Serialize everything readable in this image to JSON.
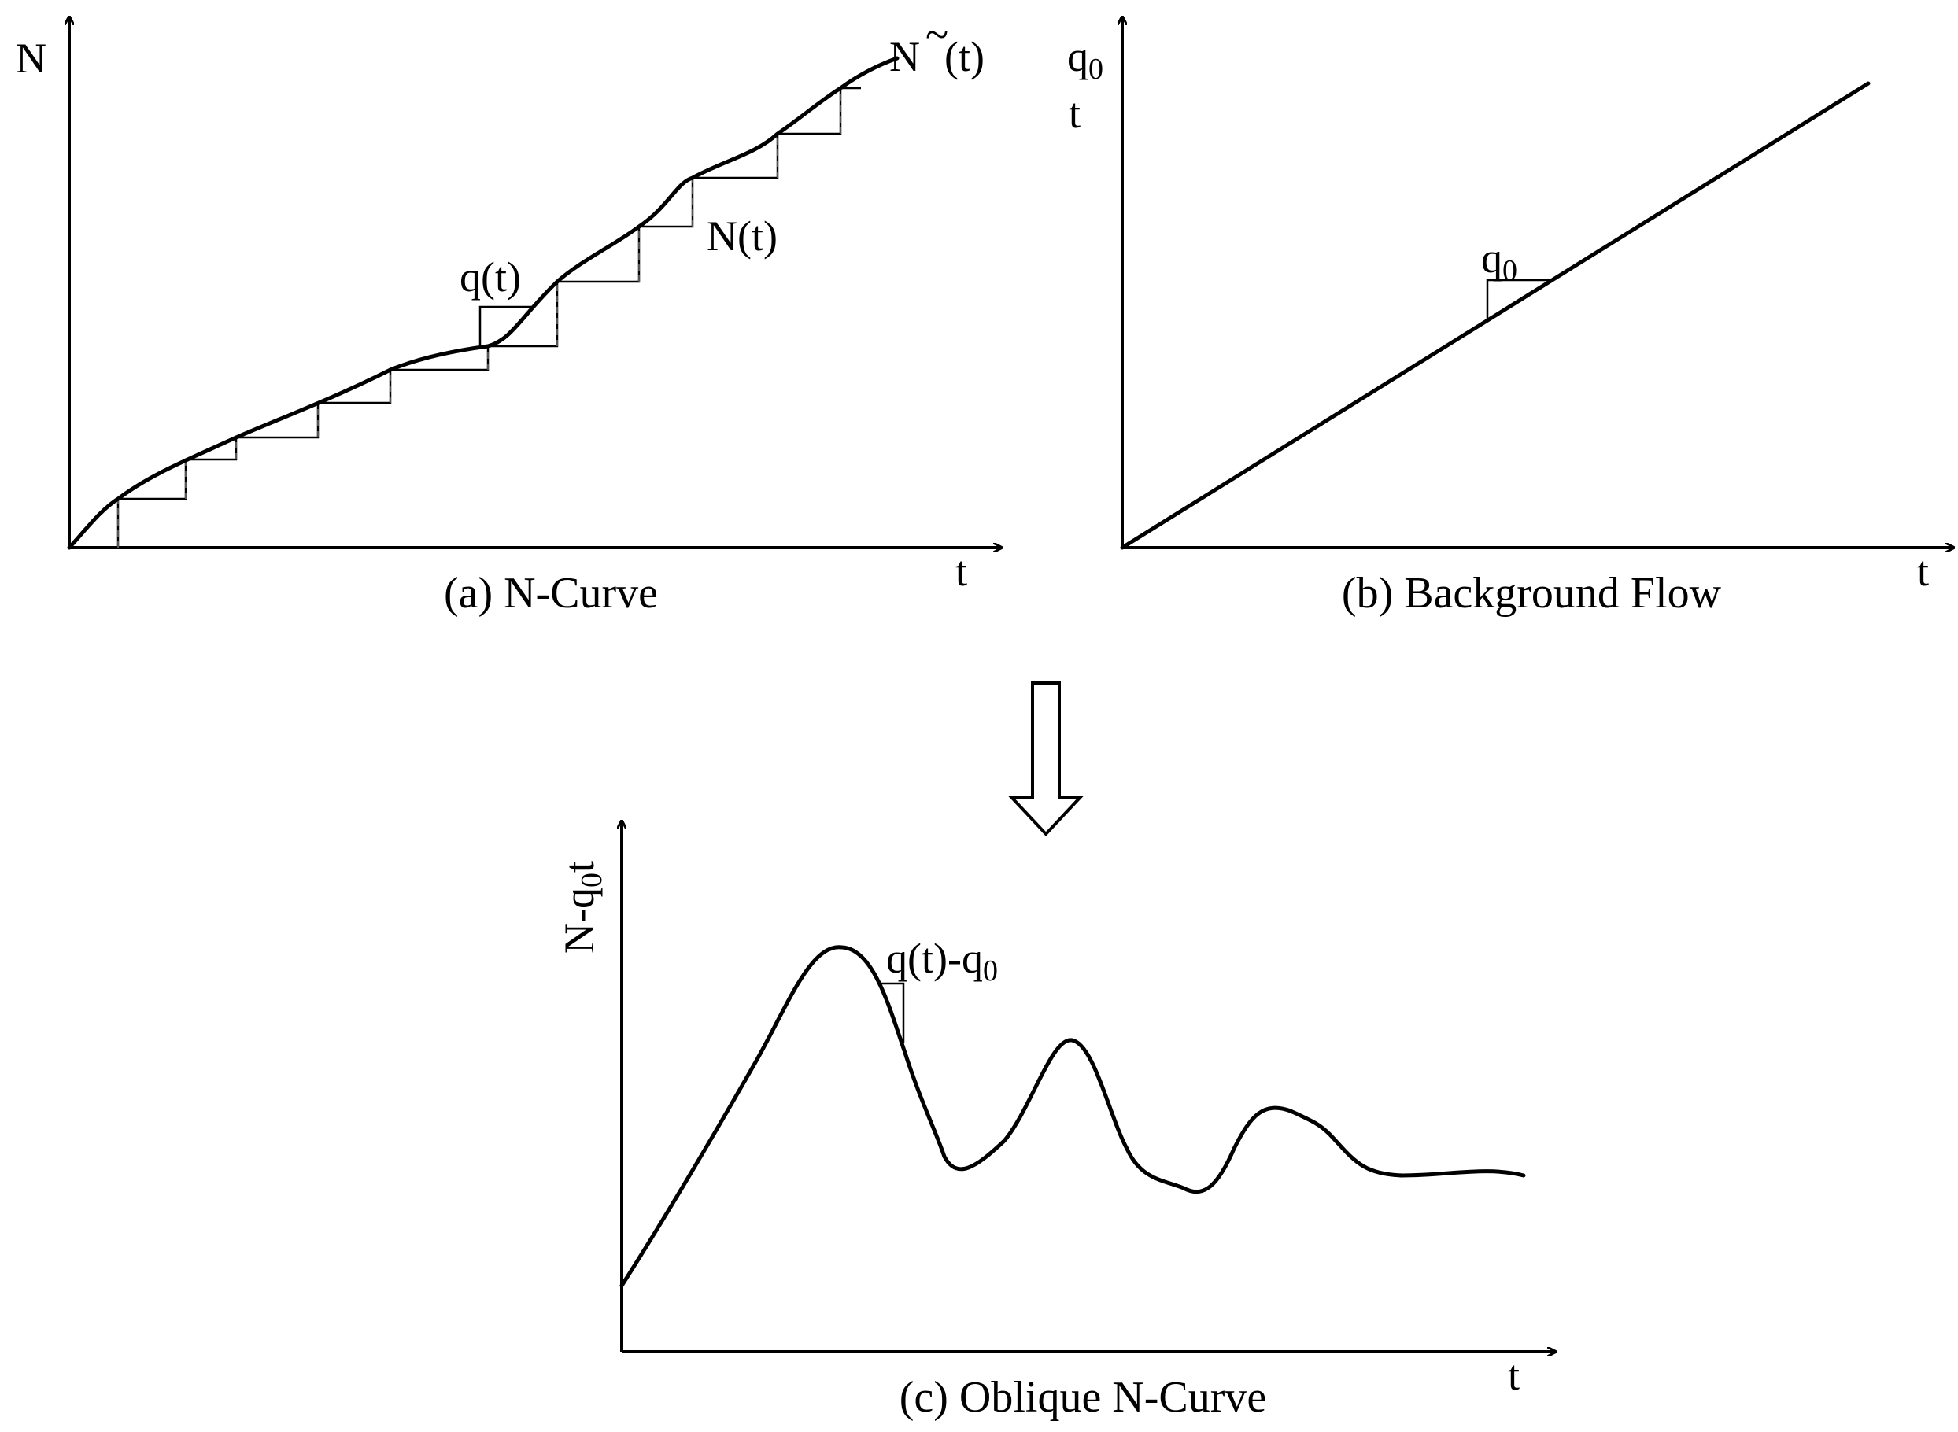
{
  "panel_a": {
    "caption": "(a) N-Curve",
    "y_axis_label": "N",
    "x_axis_label": "t",
    "smooth_curve_label_base": "N",
    "smooth_curve_label_tilde": "~",
    "smooth_curve_label_arg": "(t)",
    "step_curve_label": "N(t)",
    "slope_label": "q(t)"
  },
  "panel_b": {
    "caption": "(b) Background Flow",
    "y_axis_label_top": "q",
    "y_axis_label_top_sub": "0",
    "y_axis_label_bottom": "t",
    "x_axis_label": "t",
    "slope_label": "q",
    "slope_label_sub": "0"
  },
  "panel_c": {
    "caption": "(c) Oblique N-Curve",
    "y_axis_label_pre": "N-q",
    "y_axis_label_sub": "0",
    "y_axis_label_post": "t",
    "x_axis_label": "t",
    "slope_label_main": "q(t)-q",
    "slope_label_sub": "0"
  },
  "transform_arrow": "down-arrow-icon"
}
